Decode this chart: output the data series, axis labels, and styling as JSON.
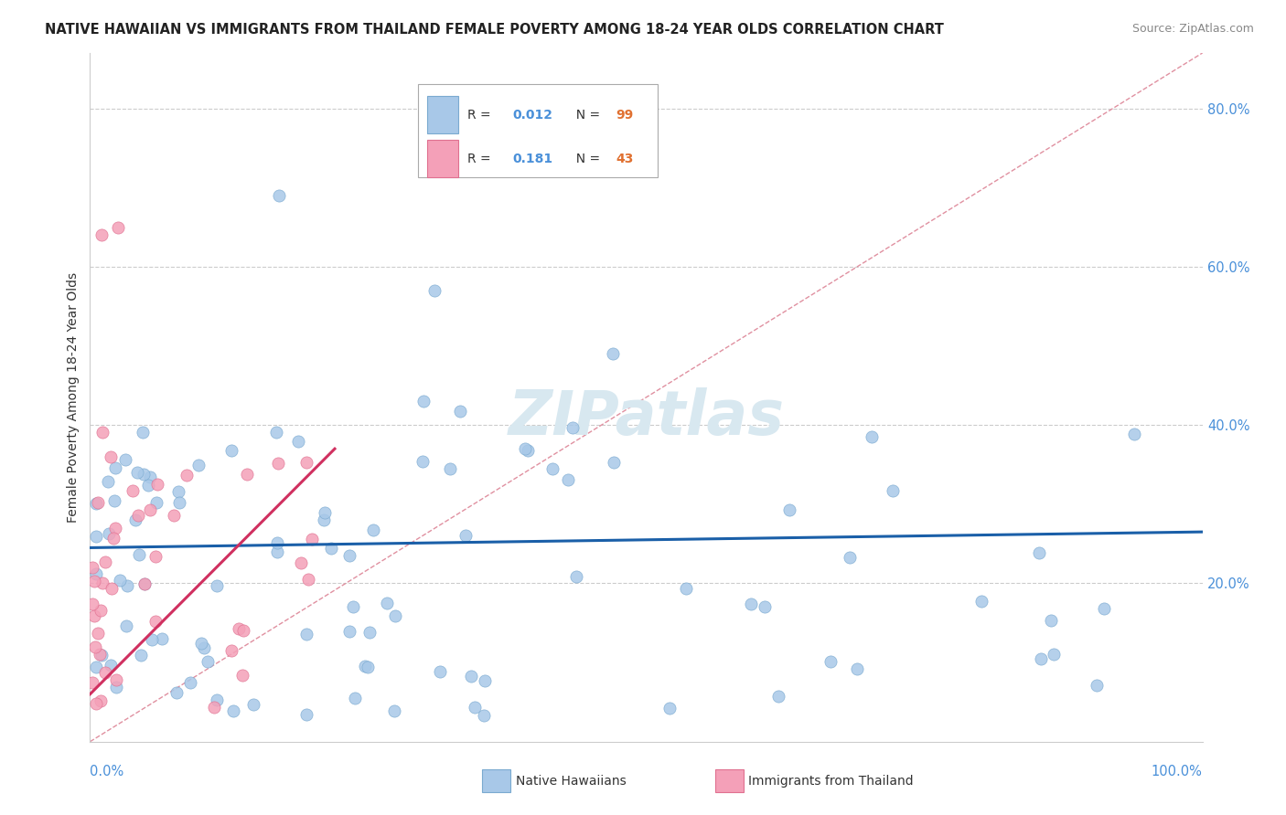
{
  "title": "NATIVE HAWAIIAN VS IMMIGRANTS FROM THAILAND FEMALE POVERTY AMONG 18-24 YEAR OLDS CORRELATION CHART",
  "source": "Source: ZipAtlas.com",
  "ylabel": "Female Poverty Among 18-24 Year Olds",
  "blue_R": "0.012",
  "blue_N": "99",
  "pink_R": "0.181",
  "pink_N": "43",
  "blue_color": "#a8c8e8",
  "pink_color": "#f4a0b8",
  "blue_edge_color": "#7aaad0",
  "pink_edge_color": "#e07090",
  "blue_line_color": "#1a5fa8",
  "pink_line_color": "#d03060",
  "diagonal_color": "#e090a0",
  "label_color": "#4a90d9",
  "watermark_color": "#d8e8f0",
  "watermark_text": "ZIPatlas",
  "y_tick_positions": [
    0.2,
    0.4,
    0.6,
    0.8
  ],
  "y_tick_labels": [
    "20.0%",
    "40.0%",
    "60.0%",
    "80.0%"
  ],
  "xlim": [
    0,
    1.0
  ],
  "ylim": [
    0,
    0.87
  ],
  "blue_trend": [
    0.0,
    0.245,
    1.0,
    0.265
  ],
  "pink_trend": [
    0.0,
    0.06,
    0.22,
    0.37
  ]
}
